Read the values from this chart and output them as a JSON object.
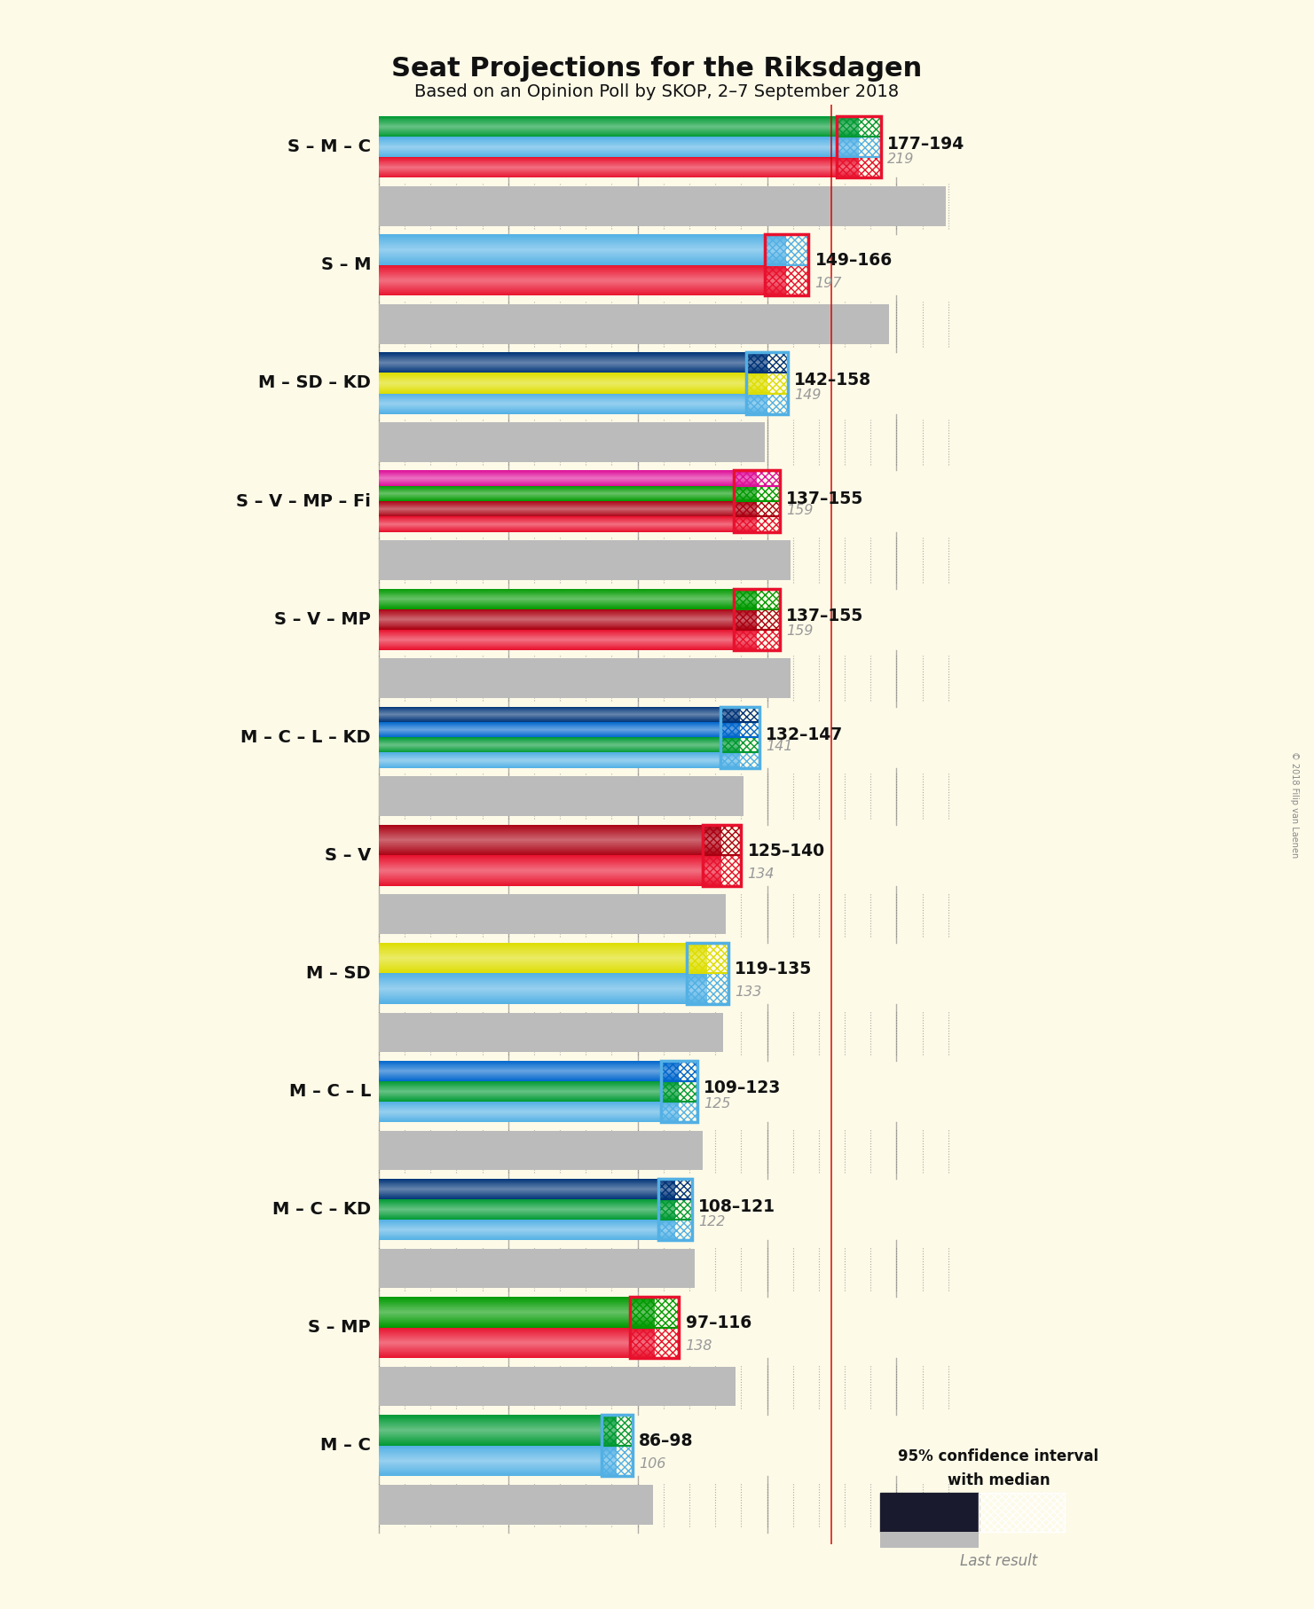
{
  "title": "Seat Projections for the Riksdagen",
  "subtitle": "Based on an Opinion Poll by SKOP, 2–7 September 2018",
  "background_color": "#FDFAE8",
  "copyright": "© 2018 Filip van Laenen",
  "coalitions": [
    {
      "name": "S – M – C",
      "low": 177,
      "high": 194,
      "last": 219,
      "parties": [
        "S",
        "M",
        "C"
      ]
    },
    {
      "name": "S – M",
      "low": 149,
      "high": 166,
      "last": 197,
      "parties": [
        "S",
        "M"
      ]
    },
    {
      "name": "M – SD – KD",
      "low": 142,
      "high": 158,
      "last": 149,
      "parties": [
        "M",
        "SD",
        "KD"
      ]
    },
    {
      "name": "S – V – MP – Fi",
      "low": 137,
      "high": 155,
      "last": 159,
      "parties": [
        "S",
        "V",
        "MP",
        "Fi"
      ]
    },
    {
      "name": "S – V – MP",
      "low": 137,
      "high": 155,
      "last": 159,
      "parties": [
        "S",
        "V",
        "MP"
      ]
    },
    {
      "name": "M – C – L – KD",
      "low": 132,
      "high": 147,
      "last": 141,
      "parties": [
        "M",
        "C",
        "L",
        "KD"
      ]
    },
    {
      "name": "S – V",
      "low": 125,
      "high": 140,
      "last": 134,
      "parties": [
        "S",
        "V"
      ]
    },
    {
      "name": "M – SD",
      "low": 119,
      "high": 135,
      "last": 133,
      "parties": [
        "M",
        "SD"
      ]
    },
    {
      "name": "M – C – L",
      "low": 109,
      "high": 123,
      "last": 125,
      "parties": [
        "M",
        "C",
        "L"
      ]
    },
    {
      "name": "M – C – KD",
      "low": 108,
      "high": 121,
      "last": 122,
      "parties": [
        "M",
        "C",
        "KD"
      ]
    },
    {
      "name": "S – MP",
      "low": 97,
      "high": 116,
      "last": 138,
      "parties": [
        "S",
        "MP"
      ]
    },
    {
      "name": "M – C",
      "low": 86,
      "high": 98,
      "last": 106,
      "parties": [
        "M",
        "C"
      ]
    }
  ],
  "party_colors": {
    "S": "#E8112d",
    "M": "#52b0e4",
    "C": "#009933",
    "V": "#AA0011",
    "MP": "#009900",
    "SD": "#DDDD00",
    "KD": "#003377",
    "L": "#0066CC",
    "Fi": "#DD1199"
  },
  "majority_line": 175,
  "xmax": 225,
  "xmin": 0,
  "grid_step": 50,
  "minor_grid_step": 10
}
